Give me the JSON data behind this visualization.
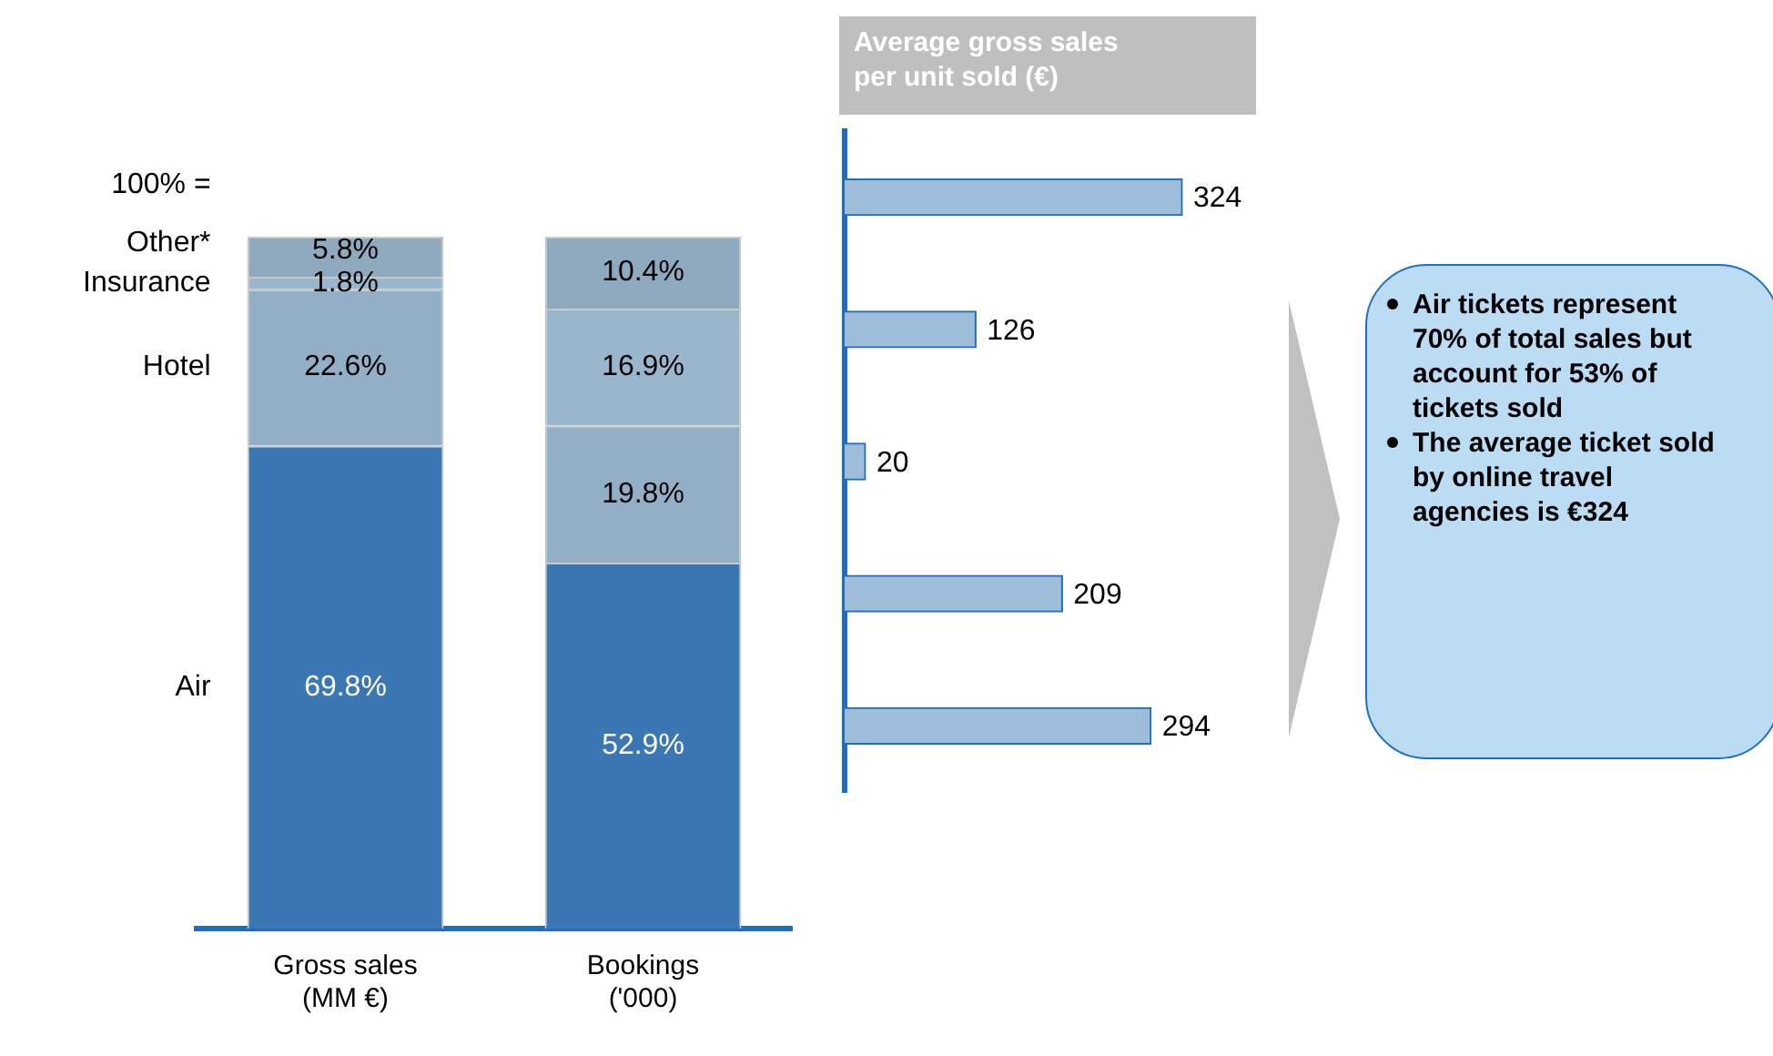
{
  "chart_data": [
    {
      "type": "bar",
      "categories": [
        "Gross sales (MM €)",
        "Bookings ('000)"
      ],
      "stacked": true,
      "ylim": [
        0,
        100
      ],
      "tick_labels": "x",
      "annotations": [
        "100% ="
      ],
      "series": [
        {
          "name": "Air",
          "color": "#3b77b3",
          "values": [
            69.8,
            52.9
          ],
          "value_labels": [
            "69.8%",
            "52.9%"
          ]
        },
        {
          "name": "Hotel",
          "color": "#93afc6",
          "values": [
            22.6,
            19.8
          ],
          "value_labels": [
            "22.6%",
            "19.8%"
          ]
        },
        {
          "name": "Insurance",
          "color": "#9ab6cc",
          "values": [
            1.8,
            16.9
          ],
          "value_labels": [
            "1.8%",
            "16.9%"
          ]
        },
        {
          "name": "Other*",
          "color": "#8fa9bf",
          "values": [
            5.8,
            10.4
          ],
          "value_labels": [
            "5.8%",
            "10.4%"
          ]
        }
      ]
    },
    {
      "type": "bar",
      "orientation": "horizontal",
      "title": "Average gross sales per unit sold (€)",
      "categories": [
        null,
        null,
        null,
        null,
        null
      ],
      "values": [
        324,
        126,
        20,
        209,
        294
      ],
      "color": "#9dbdd8",
      "tick_labels": false,
      "data_labels": true
    },
    {
      "type": "other",
      "annotations": [
        "Air tickets represent 70% of total sales but account for 53% of tickets sold",
        "The average ticket sold by online travel agencies is €324"
      ]
    }
  ]
}
